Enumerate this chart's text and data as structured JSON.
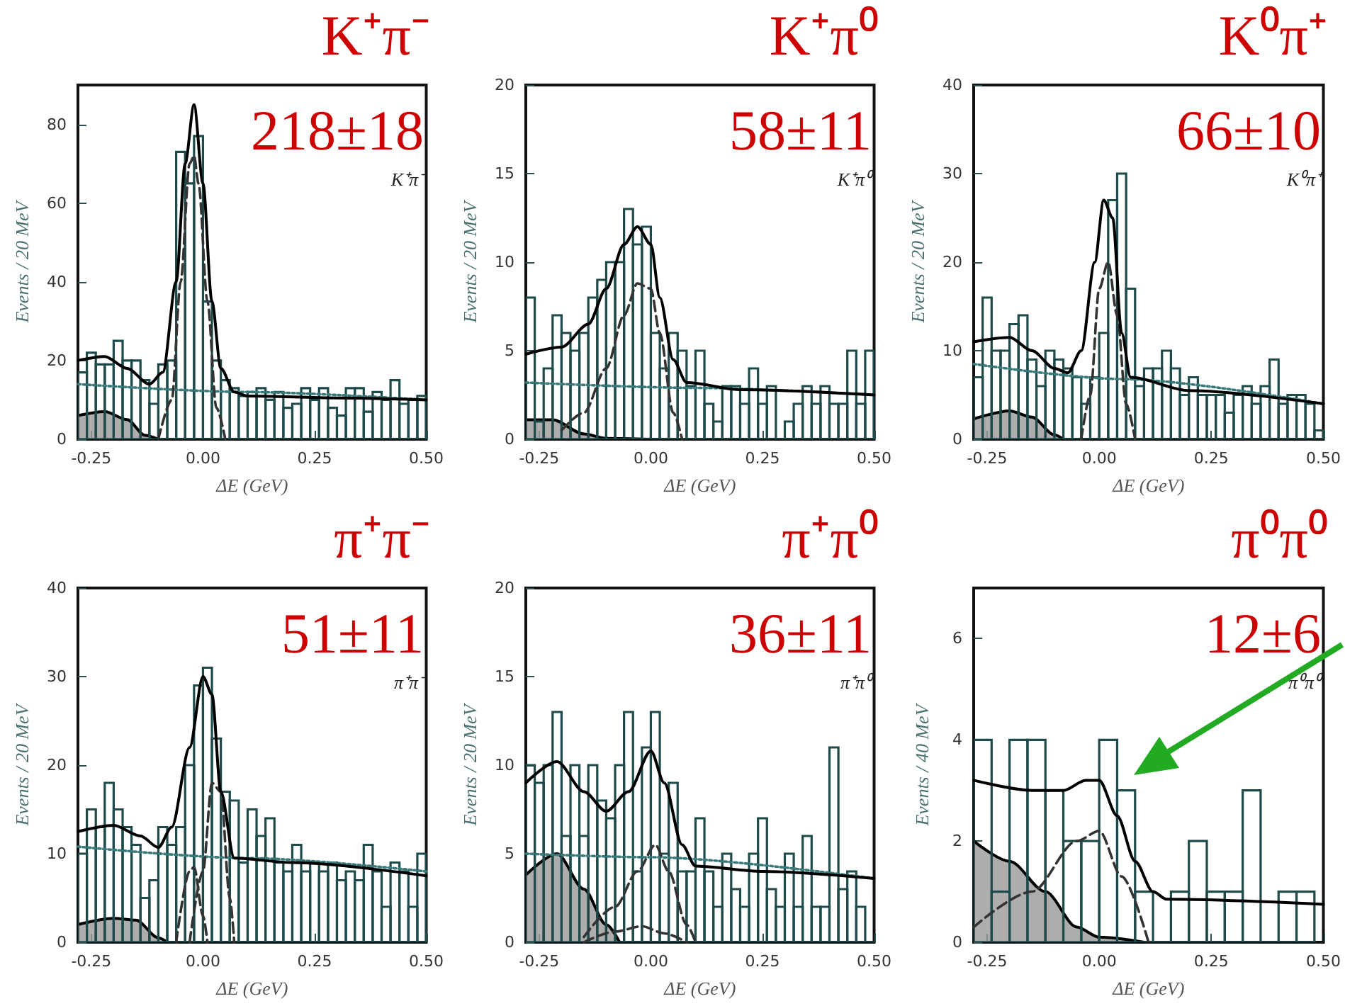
{
  "chart_data": [
    {
      "type": "histogram",
      "title": "K⁺π⁻",
      "xlabel": "ΔE (GeV)",
      "ylabel": "Events / 20 MeV",
      "annotations": [
        "218±18",
        "K⁺π⁻"
      ],
      "color": "#1e4a4a",
      "xlim": [
        -0.28,
        0.5
      ],
      "xticks": [
        {
          "value": -0.25,
          "label": "-0.25"
        },
        {
          "value": 0,
          "label": "0.00"
        },
        {
          "value": 0.25,
          "label": "0.25"
        },
        {
          "value": 0.5,
          "label": "0.50"
        }
      ],
      "ylim": [
        0,
        90
      ],
      "yticks": [
        0,
        20,
        40,
        60,
        80
      ],
      "bins": [
        -0.28,
        -0.26,
        -0.24,
        -0.22,
        -0.2,
        -0.18,
        -0.16,
        -0.14,
        -0.12,
        -0.1,
        -0.08,
        -0.06,
        -0.04,
        -0.02,
        0,
        0.02,
        0.04,
        0.06,
        0.08,
        0.1,
        0.12,
        0.14,
        0.16,
        0.18,
        0.2,
        0.22,
        0.24,
        0.26,
        0.28,
        0.3,
        0.32,
        0.34,
        0.36,
        0.38,
        0.4,
        0.42,
        0.44,
        0.46,
        0.48,
        0.5
      ],
      "values": [
        17,
        22,
        19,
        19,
        25,
        20,
        20,
        15,
        9,
        19,
        20,
        73,
        65,
        77,
        35,
        20,
        15,
        13,
        11,
        12,
        13,
        10,
        12,
        8,
        9,
        13,
        10,
        13,
        8,
        6,
        13,
        13,
        7,
        12,
        10,
        15,
        9,
        10,
        11
      ],
      "series": [
        {
          "type": "area",
          "color": "#999999",
          "x": [
            -0.28,
            -0.22,
            -0.17,
            -0.13,
            -0.1
          ],
          "values": [
            6,
            7,
            5,
            1,
            0
          ]
        },
        {
          "type": "line",
          "line_style": "dotted",
          "color": "#3a7a7a",
          "x": [
            -0.28,
            0.1,
            0.5
          ],
          "values": [
            14,
            12,
            10
          ]
        },
        {
          "type": "line",
          "line_style": "dashed",
          "color": "#333333",
          "x": [
            -0.1,
            -0.07,
            -0.05,
            -0.03,
            -0.02,
            -0.01,
            0.01,
            0.03,
            0.05
          ],
          "values": [
            0,
            10,
            40,
            70,
            72,
            65,
            35,
            8,
            0
          ]
        },
        {
          "type": "line",
          "line_style": "solid",
          "color": "#000000",
          "x": [
            -0.28,
            -0.22,
            -0.17,
            -0.12,
            -0.09,
            -0.06,
            -0.04,
            -0.02,
            0,
            0.02,
            0.04,
            0.07,
            0.1,
            0.3,
            0.5
          ],
          "values": [
            20,
            21,
            18,
            14,
            17,
            40,
            70,
            85,
            65,
            35,
            18,
            12,
            11,
            10.5,
            10
          ]
        }
      ]
    },
    {
      "type": "histogram",
      "title": "K⁺π⁰",
      "xlabel": "ΔE (GeV)",
      "ylabel": "Events / 20 MeV",
      "annotations": [
        "58±11",
        "K⁺π⁰"
      ],
      "color": "#1e4a4a",
      "xlim": [
        -0.28,
        0.5
      ],
      "xticks": [
        {
          "value": -0.25,
          "label": "-0.25"
        },
        {
          "value": 0,
          "label": "0.00"
        },
        {
          "value": 0.25,
          "label": "0.25"
        },
        {
          "value": 0.5,
          "label": "0.50"
        }
      ],
      "ylim": [
        0,
        20
      ],
      "yticks": [
        0,
        5,
        10,
        15,
        20
      ],
      "bins": [
        -0.28,
        -0.26,
        -0.24,
        -0.22,
        -0.2,
        -0.18,
        -0.16,
        -0.14,
        -0.12,
        -0.1,
        -0.08,
        -0.06,
        -0.04,
        -0.02,
        0,
        0.02,
        0.04,
        0.06,
        0.08,
        0.1,
        0.12,
        0.14,
        0.16,
        0.18,
        0.2,
        0.22,
        0.24,
        0.26,
        0.28,
        0.3,
        0.32,
        0.34,
        0.36,
        0.38,
        0.4,
        0.42,
        0.44,
        0.46,
        0.48,
        0.5
      ],
      "values": [
        8,
        1,
        4,
        7,
        6,
        5,
        6,
        8,
        9,
        10,
        10,
        13,
        11,
        12,
        6,
        4,
        6,
        5,
        3,
        5,
        2,
        1,
        3,
        3,
        2,
        4,
        2,
        3,
        0,
        1,
        2,
        3,
        2,
        3,
        2,
        2,
        5,
        2,
        5
      ],
      "series": [
        {
          "type": "area",
          "color": "#999999",
          "x": [
            -0.28,
            -0.22,
            -0.15,
            -0.1,
            0
          ],
          "values": [
            1.1,
            1.1,
            0.3,
            0.05,
            0
          ]
        },
        {
          "type": "line",
          "line_style": "dotted",
          "color": "#3a7a7a",
          "x": [
            -0.28,
            0.1,
            0.5
          ],
          "values": [
            3.2,
            2.9,
            2.5
          ]
        },
        {
          "type": "line",
          "line_style": "dashed",
          "color": "#333333",
          "x": [
            -0.2,
            -0.15,
            -0.1,
            -0.06,
            -0.03,
            0,
            0.02,
            0.05,
            0.07
          ],
          "values": [
            0.5,
            1.5,
            4,
            7,
            8.8,
            8.5,
            6,
            1.5,
            0
          ]
        },
        {
          "type": "line",
          "line_style": "solid",
          "color": "#000000",
          "x": [
            -0.28,
            -0.2,
            -0.14,
            -0.1,
            -0.06,
            -0.03,
            0,
            0.02,
            0.05,
            0.08,
            0.2,
            0.5
          ],
          "values": [
            4.8,
            5.2,
            6.5,
            8.5,
            11,
            12,
            11,
            8,
            4.5,
            3.2,
            2.8,
            2.5
          ]
        }
      ]
    },
    {
      "type": "histogram",
      "title": "K⁰π⁺",
      "xlabel": "ΔE (GeV)",
      "ylabel": "Events / 20 MeV",
      "annotations": [
        "66±10",
        "K⁰π⁺"
      ],
      "color": "#1e4a4a",
      "xlim": [
        -0.28,
        0.5
      ],
      "xticks": [
        {
          "value": -0.25,
          "label": "-0.25"
        },
        {
          "value": 0,
          "label": "0.00"
        },
        {
          "value": 0.25,
          "label": "0.25"
        },
        {
          "value": 0.5,
          "label": "0.50"
        }
      ],
      "ylim": [
        0,
        40
      ],
      "yticks": [
        0,
        10,
        20,
        30,
        40
      ],
      "bins": [
        -0.28,
        -0.26,
        -0.24,
        -0.22,
        -0.2,
        -0.18,
        -0.16,
        -0.14,
        -0.12,
        -0.1,
        -0.08,
        -0.06,
        -0.04,
        -0.02,
        0,
        0.02,
        0.04,
        0.06,
        0.08,
        0.1,
        0.12,
        0.14,
        0.16,
        0.18,
        0.2,
        0.22,
        0.24,
        0.26,
        0.28,
        0.3,
        0.32,
        0.34,
        0.36,
        0.38,
        0.4,
        0.42,
        0.44,
        0.46,
        0.48,
        0.5
      ],
      "values": [
        7,
        16,
        10,
        10,
        13,
        14,
        9,
        6,
        10,
        9,
        8,
        7,
        4,
        7,
        12,
        27,
        30,
        17,
        6,
        8,
        8,
        10,
        8,
        5,
        7,
        5,
        5,
        5,
        3,
        5,
        6,
        4,
        6,
        9,
        4,
        5,
        5,
        4,
        1
      ],
      "series": [
        {
          "type": "area",
          "color": "#999999",
          "x": [
            -0.28,
            -0.2,
            -0.15,
            -0.1,
            -0.08
          ],
          "values": [
            2.3,
            3.2,
            2.5,
            0.5,
            0
          ]
        },
        {
          "type": "line",
          "line_style": "dotted",
          "color": "#3a7a7a",
          "x": [
            -0.28,
            0.05,
            0.5
          ],
          "values": [
            8.5,
            6.8,
            4
          ]
        },
        {
          "type": "line",
          "line_style": "dashed",
          "color": "#333333",
          "x": [
            -0.04,
            -0.02,
            0,
            0.02,
            0.04,
            0.06,
            0.08
          ],
          "values": [
            0,
            5,
            17,
            20,
            14,
            4,
            0
          ]
        },
        {
          "type": "line",
          "line_style": "solid",
          "color": "#000000",
          "x": [
            -0.28,
            -0.2,
            -0.15,
            -0.1,
            -0.07,
            -0.04,
            -0.01,
            0.01,
            0.03,
            0.05,
            0.07,
            0.2,
            0.5
          ],
          "values": [
            11,
            11.5,
            10,
            8,
            7.5,
            10,
            20,
            27,
            25,
            12,
            7,
            5.5,
            4
          ]
        }
      ]
    },
    {
      "type": "histogram",
      "title": "π⁺π⁻",
      "xlabel": "ΔE (GeV)",
      "ylabel": "Events / 20 MeV",
      "annotations": [
        "51±11",
        "π⁺π⁻"
      ],
      "color": "#1e4a4a",
      "xlim": [
        -0.28,
        0.5
      ],
      "xticks": [
        {
          "value": -0.25,
          "label": "-0.25"
        },
        {
          "value": 0,
          "label": "0.00"
        },
        {
          "value": 0.25,
          "label": "0.25"
        },
        {
          "value": 0.5,
          "label": "0.50"
        }
      ],
      "ylim": [
        0,
        40
      ],
      "yticks": [
        0,
        10,
        20,
        30,
        40
      ],
      "bins": [
        -0.28,
        -0.26,
        -0.24,
        -0.22,
        -0.2,
        -0.18,
        -0.16,
        -0.14,
        -0.12,
        -0.1,
        -0.08,
        -0.06,
        -0.04,
        -0.02,
        0,
        0.02,
        0.04,
        0.06,
        0.08,
        0.1,
        0.12,
        0.14,
        0.16,
        0.18,
        0.2,
        0.22,
        0.24,
        0.26,
        0.28,
        0.3,
        0.32,
        0.34,
        0.36,
        0.38,
        0.4,
        0.42,
        0.44,
        0.46,
        0.48,
        0.5
      ],
      "values": [
        10,
        15,
        13,
        18,
        15,
        13,
        11,
        5,
        7,
        13,
        11,
        13,
        20,
        29,
        31,
        23,
        17,
        16,
        9,
        15,
        12,
        14,
        9,
        8,
        11,
        8,
        9,
        8,
        9,
        7,
        8,
        7,
        11,
        8,
        4,
        9,
        8,
        4,
        10
      ],
      "series": [
        {
          "type": "area",
          "color": "#999999",
          "x": [
            -0.28,
            -0.2,
            -0.15,
            -0.1,
            -0.08
          ],
          "values": [
            2,
            2.7,
            2.5,
            0.5,
            0
          ]
        },
        {
          "type": "line",
          "line_style": "dotted",
          "color": "#3a7a7a",
          "x": [
            -0.28,
            0.1,
            0.5
          ],
          "values": [
            10.8,
            9.5,
            8
          ]
        },
        {
          "type": "line",
          "line_style": "dashed",
          "color": "#333333",
          "x": [
            -0.06,
            -0.03,
            -0.02,
            0,
            0.01
          ],
          "values": [
            0,
            8,
            8.5,
            3,
            0
          ]
        },
        {
          "type": "line",
          "line_style": "dashed",
          "color": "#333333",
          "x": [
            -0.03,
            0,
            0.02,
            0.04,
            0.06,
            0.07
          ],
          "values": [
            0,
            8,
            18,
            17,
            5,
            0
          ]
        },
        {
          "type": "line",
          "line_style": "solid",
          "color": "#000000",
          "x": [
            -0.28,
            -0.2,
            -0.14,
            -0.1,
            -0.07,
            -0.03,
            0,
            0.02,
            0.04,
            0.07,
            0.2,
            0.5
          ],
          "values": [
            12.5,
            13.2,
            12,
            10.7,
            13,
            22,
            30,
            28,
            17,
            9.5,
            9,
            7.5
          ]
        }
      ]
    },
    {
      "type": "histogram",
      "title": "π⁺π⁰",
      "xlabel": "ΔE (GeV)",
      "ylabel": "Events / 20 MeV",
      "annotations": [
        "36±11",
        "π⁺π⁰"
      ],
      "color": "#1e4a4a",
      "xlim": [
        -0.28,
        0.5
      ],
      "xticks": [
        {
          "value": -0.25,
          "label": "-0.25"
        },
        {
          "value": 0,
          "label": "0.00"
        },
        {
          "value": 0.25,
          "label": "0.25"
        },
        {
          "value": 0.5,
          "label": "0.50"
        }
      ],
      "ylim": [
        0,
        20
      ],
      "yticks": [
        0,
        5,
        10,
        15,
        20
      ],
      "bins": [
        -0.28,
        -0.26,
        -0.24,
        -0.22,
        -0.2,
        -0.18,
        -0.16,
        -0.14,
        -0.12,
        -0.1,
        -0.08,
        -0.06,
        -0.04,
        -0.02,
        0,
        0.02,
        0.04,
        0.06,
        0.08,
        0.1,
        0.12,
        0.14,
        0.16,
        0.18,
        0.2,
        0.22,
        0.24,
        0.26,
        0.28,
        0.3,
        0.32,
        0.34,
        0.36,
        0.38,
        0.4,
        0.42,
        0.44,
        0.46,
        0.48,
        0.5
      ],
      "values": [
        10,
        9,
        10,
        13,
        6,
        10,
        6,
        10,
        8,
        7,
        10,
        13,
        4,
        11,
        13,
        5,
        9,
        4,
        4,
        7,
        4,
        2,
        5,
        3,
        2,
        5,
        7,
        3,
        2,
        5,
        2,
        6,
        2,
        2,
        11,
        3,
        4,
        2,
        0
      ],
      "series": [
        {
          "type": "area",
          "color": "#999999",
          "x": [
            -0.28,
            -0.21,
            -0.15,
            -0.1,
            -0.07
          ],
          "values": [
            3.8,
            5,
            3,
            1,
            0
          ]
        },
        {
          "type": "line",
          "line_style": "dotted",
          "color": "#3a7a7a",
          "x": [
            -0.28,
            0,
            0.5
          ],
          "values": [
            5,
            4.8,
            3.6
          ]
        },
        {
          "type": "line",
          "line_style": "dashed",
          "color": "#333333",
          "x": [
            -0.15,
            -0.08,
            -0.03,
            0.01,
            0.04,
            0.08,
            0.1
          ],
          "values": [
            0.3,
            2,
            4,
            5.5,
            4,
            1,
            0
          ]
        },
        {
          "type": "line",
          "line_style": "dashed",
          "color": "#333333",
          "x": [
            -0.15,
            -0.08,
            -0.02,
            0.03,
            0.08
          ],
          "values": [
            0,
            0.6,
            0.9,
            0.5,
            0
          ]
        },
        {
          "type": "line",
          "line_style": "solid",
          "color": "#000000",
          "x": [
            -0.28,
            -0.21,
            -0.15,
            -0.1,
            -0.05,
            0,
            0.03,
            0.07,
            0.1,
            0.25,
            0.5
          ],
          "values": [
            9,
            10.2,
            8.5,
            7.4,
            8.5,
            10.8,
            9,
            5.5,
            4.3,
            4,
            3.6
          ]
        }
      ]
    },
    {
      "type": "histogram",
      "title": "π⁰π⁰",
      "xlabel": "ΔE (GeV)",
      "ylabel": "Events / 40 MeV",
      "annotations": [
        "12±6",
        "π⁰π⁰"
      ],
      "color": "#1e4a4a",
      "xlim": [
        -0.28,
        0.5
      ],
      "xticks": [
        {
          "value": -0.25,
          "label": "-0.25"
        },
        {
          "value": 0,
          "label": "0.00"
        },
        {
          "value": 0.25,
          "label": "0.25"
        },
        {
          "value": 0.5,
          "label": "0.50"
        }
      ],
      "ylim": [
        0,
        7
      ],
      "yticks": [
        0,
        2,
        4,
        6
      ],
      "bins": [
        -0.28,
        -0.24,
        -0.2,
        -0.16,
        -0.12,
        -0.08,
        -0.04,
        0,
        0.04,
        0.08,
        0.12,
        0.16,
        0.2,
        0.24,
        0.28,
        0.32,
        0.36,
        0.4,
        0.44,
        0.48
      ],
      "values": [
        4,
        1,
        4,
        4,
        3,
        2,
        2,
        4,
        3,
        1,
        0,
        1,
        2,
        1,
        1,
        3,
        0,
        1,
        1
      ],
      "series": [
        {
          "type": "area",
          "color": "#999999",
          "x": [
            -0.28,
            -0.2,
            -0.12,
            -0.05,
            0,
            0.1
          ],
          "values": [
            2,
            1.6,
            1,
            0.3,
            0.1,
            0
          ]
        },
        {
          "type": "line",
          "line_style": "dashed",
          "color": "#333333",
          "x": [
            -0.28,
            -0.15,
            -0.05,
            0,
            0.05,
            0.11
          ],
          "values": [
            0.3,
            1,
            2,
            2.2,
            1.3,
            0
          ]
        },
        {
          "type": "line",
          "line_style": "solid",
          "color": "#000000",
          "x": [
            -0.28,
            -0.15,
            -0.08,
            -0.03,
            0,
            0.04,
            0.08,
            0.12,
            0.15,
            0.5
          ],
          "values": [
            3.2,
            3,
            3,
            3.2,
            3.2,
            2.5,
            1.6,
            1,
            0.85,
            0.75
          ]
        }
      ]
    }
  ]
}
